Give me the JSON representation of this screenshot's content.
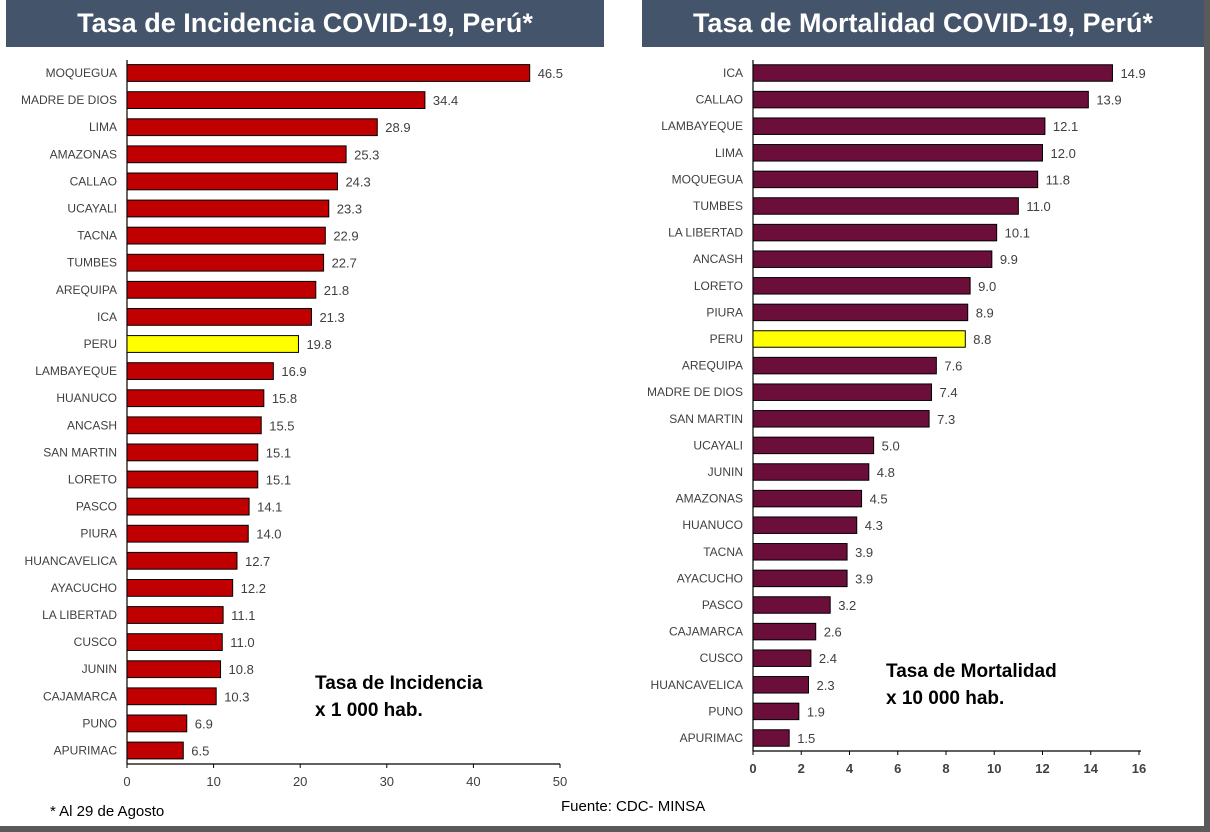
{
  "colors": {
    "banner": "#44546a",
    "incidence_bar": "#c00000",
    "mortality_bar": "#6b0f3a",
    "highlight_bar": "#ffff00",
    "bar_edge": "#000000"
  },
  "chart_data": [
    {
      "type": "bar",
      "orientation": "horizontal",
      "title": "Tasa de Incidencia COVID-19, Perú*",
      "annotation": [
        "Tasa de Incidencia",
        "x 1 000 hab."
      ],
      "highlight": "PERU",
      "xlim": [
        0,
        50
      ],
      "xticks": [
        0,
        10,
        20,
        30,
        40,
        50
      ],
      "categories": [
        "MOQUEGUA",
        "MADRE DE DIOS",
        "LIMA",
        "AMAZONAS",
        "CALLAO",
        "UCAYALI",
        "TACNA",
        "TUMBES",
        "AREQUIPA",
        "ICA",
        "PERU",
        "LAMBAYEQUE",
        "HUANUCO",
        "ANCASH",
        "SAN MARTIN",
        "LORETO",
        "PASCO",
        "PIURA",
        "HUANCAVELICA",
        "AYACUCHO",
        "LA LIBERTAD",
        "CUSCO",
        "JUNIN",
        "CAJAMARCA",
        "PUNO",
        "APURIMAC"
      ],
      "values": [
        46.5,
        34.4,
        28.9,
        25.3,
        24.3,
        23.3,
        22.9,
        22.7,
        21.8,
        21.3,
        19.8,
        16.9,
        15.8,
        15.5,
        15.1,
        15.1,
        14.1,
        14.0,
        12.7,
        12.2,
        11.1,
        11.0,
        10.8,
        10.3,
        6.9,
        6.5
      ],
      "value_labels": [
        "46.5",
        "34.4",
        "28.9",
        "25.3",
        "24.3",
        "23.3",
        "22.9",
        "22.7",
        "21.8",
        "21.3",
        "19.8",
        "16.9",
        "15.8",
        "15.5",
        "15.1",
        "15.1",
        "14.1",
        "14.0",
        "12.7",
        "12.2",
        "11.1",
        "11.0",
        "10.8",
        "10.3",
        "6.9",
        "6.5"
      ]
    },
    {
      "type": "bar",
      "orientation": "horizontal",
      "title": "Tasa de Mortalidad COVID-19, Perú*",
      "annotation": [
        "Tasa de Mortalidad",
        "x 10 000 hab."
      ],
      "highlight": "PERU",
      "xlim": [
        0,
        16
      ],
      "xticks": [
        0,
        2,
        4,
        6,
        8,
        10,
        12,
        14,
        16
      ],
      "categories": [
        "ICA",
        "CALLAO",
        "LAMBAYEQUE",
        "LIMA",
        "MOQUEGUA",
        "TUMBES",
        "LA LIBERTAD",
        "ANCASH",
        "LORETO",
        "PIURA",
        "PERU",
        "AREQUIPA",
        "MADRE DE DIOS",
        "SAN MARTIN",
        "UCAYALI",
        "JUNIN",
        "AMAZONAS",
        "HUANUCO",
        "TACNA",
        "AYACUCHO",
        "PASCO",
        "CAJAMARCA",
        "CUSCO",
        "HUANCAVELICA",
        "PUNO",
        "APURIMAC"
      ],
      "values": [
        14.9,
        13.9,
        12.1,
        12.0,
        11.8,
        11.0,
        10.1,
        9.9,
        9.0,
        8.9,
        8.8,
        7.6,
        7.4,
        7.3,
        5.0,
        4.8,
        4.5,
        4.3,
        3.9,
        3.9,
        3.2,
        2.6,
        2.4,
        2.3,
        1.9,
        1.5
      ],
      "value_labels": [
        "14.9",
        "13.9",
        "12.1",
        "12.0",
        "11.8",
        "11.0",
        "10.1",
        "9.9",
        "9.0",
        "8.9",
        "8.8",
        "7.6",
        "7.4",
        "7.3",
        "5.0",
        "4.8",
        "4.5",
        "4.3",
        "3.9",
        "3.9",
        "3.2",
        "2.6",
        "2.4",
        "2.3",
        "1.9",
        "1.5"
      ]
    }
  ],
  "footnote": "* Al 29 de Agosto",
  "source": "Fuente: CDC- MINSA"
}
